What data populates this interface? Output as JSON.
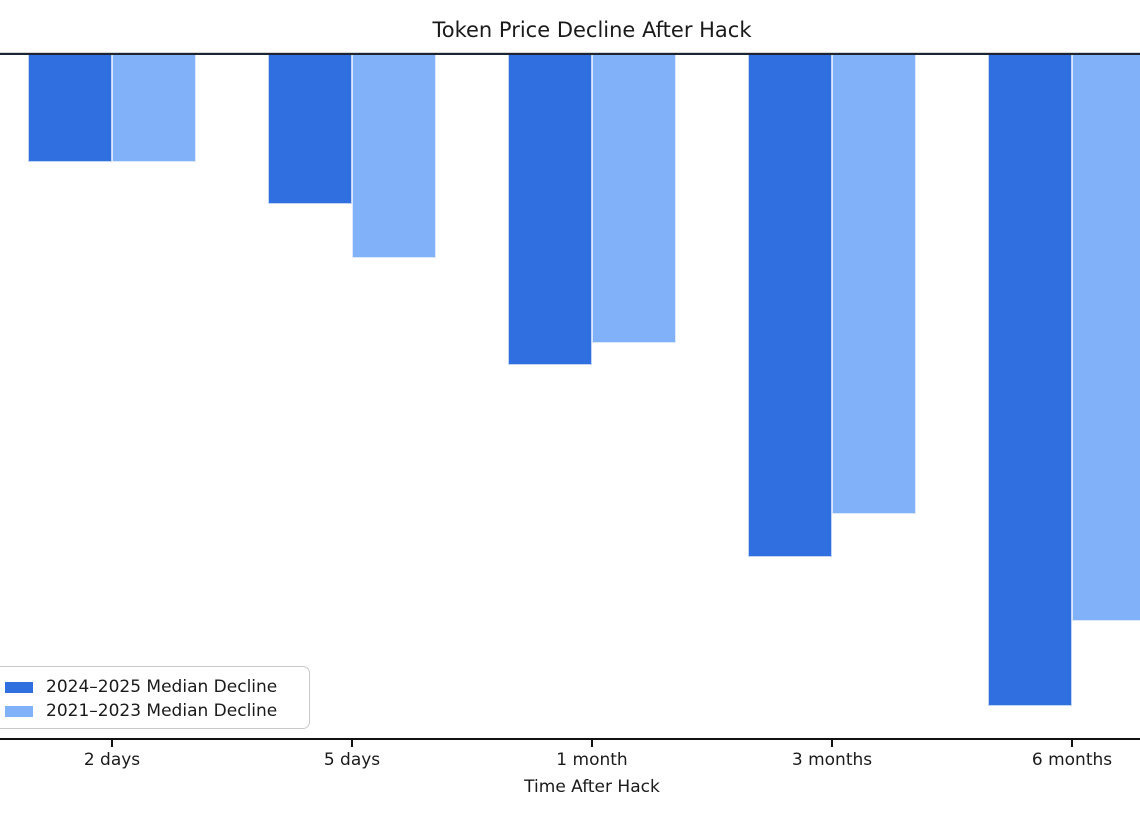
{
  "chart_data": {
    "type": "bar",
    "title": "Token Price Decline After Hack",
    "xlabel": "Time After Hack",
    "ylabel": "",
    "categories": [
      "2 days",
      "5 days",
      "1 month",
      "3 months",
      "6 months"
    ],
    "series": [
      {
        "name": "2024–2025 Median Decline",
        "color": "#2f6fe0",
        "values": [
          -10,
          -14,
          -29,
          -47,
          -61
        ]
      },
      {
        "name": "2021–2023 Median Decline",
        "color": "#81b1f9",
        "values": [
          -10,
          -19,
          -27,
          -43,
          -53
        ]
      }
    ],
    "units": "percent",
    "ylim": [
      -64,
      0
    ],
    "grid": false,
    "legend_position": "lower left",
    "notes": "Y-axis tick labels are cropped outside the visible screenshot; values estimated from bar lengths."
  }
}
